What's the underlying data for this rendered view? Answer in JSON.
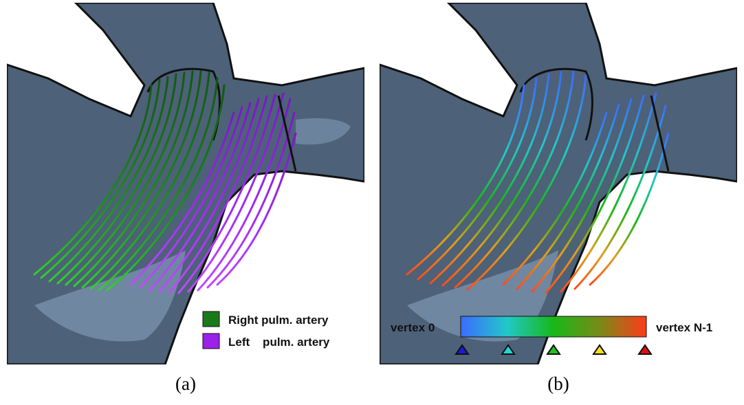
{
  "figure": {
    "panel_a": {
      "caption": "(a)",
      "legend": [
        {
          "label": "Right pulm. artery",
          "color": "#1a7a1a"
        },
        {
          "label": "Left    pulm. artery",
          "color": "#9b22e8"
        }
      ],
      "colors": {
        "right_artery": "#22891f",
        "left_artery": "#a12cf2"
      }
    },
    "panel_b": {
      "caption": "(b)",
      "colorbar": {
        "left_label": "vertex 0",
        "right_label": "vertex N-1",
        "stops": [
          "#3b6cff",
          "#22c8c8",
          "#18b818",
          "#e0d21a",
          "#ff3a1a"
        ],
        "markers": [
          "#1a1ad8",
          "#20d8d8",
          "#20c020",
          "#f0e020",
          "#e01010"
        ]
      }
    },
    "colors": {
      "vessel_fill": "#4d6178",
      "vessel_outline": "#111111",
      "vessel_highlight": "#7891ab",
      "background": "#ffffff"
    }
  }
}
